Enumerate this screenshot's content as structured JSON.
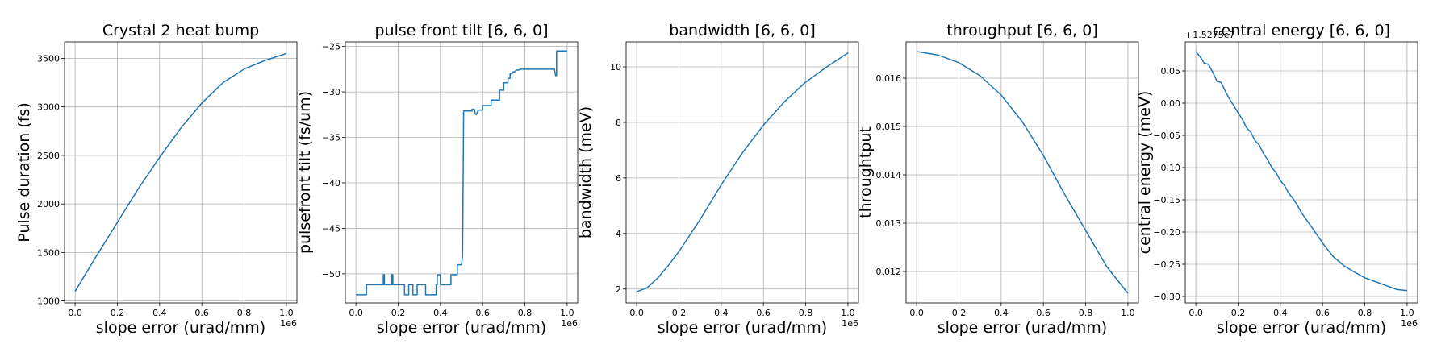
{
  "chart_data": [
    {
      "type": "line",
      "title": "Crystal 2 heat bump",
      "xlabel": "slope error (urad/mm)",
      "ylabel": "Pulse duration (fs)",
      "x_offset_label": "1e6",
      "y_offset_label": "",
      "xlim": [
        -0.05,
        1.05
      ],
      "ylim": [
        980,
        3670
      ],
      "xticks": [
        0.0,
        0.2,
        0.4,
        0.6,
        0.8,
        1.0
      ],
      "xtick_labels": [
        "0.0",
        "0.2",
        "0.4",
        "0.6",
        "0.8",
        "1.0"
      ],
      "yticks": [
        1000,
        1500,
        2000,
        2500,
        3000,
        3500
      ],
      "ytick_labels": [
        "1000",
        "1500",
        "2000",
        "2500",
        "3000",
        "3500"
      ],
      "grid": true,
      "series": [
        {
          "color": "#1f77b4",
          "x": [
            0.0,
            0.1,
            0.2,
            0.3,
            0.4,
            0.5,
            0.6,
            0.7,
            0.8,
            0.9,
            1.0
          ],
          "y": [
            1100,
            1460,
            1810,
            2160,
            2480,
            2780,
            3040,
            3250,
            3390,
            3480,
            3550
          ]
        }
      ]
    },
    {
      "type": "line",
      "title": "pulse front tilt [6, 6, 0]",
      "xlabel": "slope error (urad/mm)",
      "ylabel": "pulsefront tilt (fs/um)",
      "x_offset_label": "1e6",
      "y_offset_label": "",
      "xlim": [
        -0.05,
        1.05
      ],
      "ylim": [
        -53.2,
        -24.5
      ],
      "xticks": [
        0.0,
        0.2,
        0.4,
        0.6,
        0.8,
        1.0
      ],
      "xtick_labels": [
        "0.0",
        "0.2",
        "0.4",
        "0.6",
        "0.8",
        "1.0"
      ],
      "yticks": [
        -50,
        -45,
        -40,
        -35,
        -30,
        -25
      ],
      "ytick_labels": [
        "−50",
        "−45",
        "−40",
        "−35",
        "−30",
        "−25"
      ],
      "grid": true,
      "series": [
        {
          "color": "#1f77b4",
          "x": [
            0.0,
            0.05,
            0.05,
            0.13,
            0.13,
            0.135,
            0.135,
            0.17,
            0.17,
            0.175,
            0.175,
            0.23,
            0.23,
            0.25,
            0.25,
            0.27,
            0.27,
            0.29,
            0.29,
            0.33,
            0.33,
            0.38,
            0.38,
            0.385,
            0.385,
            0.4,
            0.4,
            0.45,
            0.45,
            0.48,
            0.48,
            0.5,
            0.505,
            0.51,
            0.51,
            0.55,
            0.55,
            0.56,
            0.565,
            0.57,
            0.58,
            0.6,
            0.6,
            0.64,
            0.64,
            0.68,
            0.68,
            0.7,
            0.7,
            0.72,
            0.72,
            0.73,
            0.73,
            0.74,
            0.74,
            0.75,
            0.76,
            0.77,
            0.78,
            0.8,
            0.8,
            0.94,
            0.945,
            0.95,
            0.95,
            1.0
          ],
          "y": [
            -52.3,
            -52.3,
            -51.2,
            -51.2,
            -50.1,
            -50.1,
            -51.2,
            -51.2,
            -50.1,
            -50.1,
            -51.2,
            -51.2,
            -52.3,
            -52.3,
            -51.2,
            -51.2,
            -52.3,
            -52.3,
            -51.2,
            -51.2,
            -52.3,
            -52.3,
            -51.2,
            -51.2,
            -50.1,
            -50.1,
            -51.2,
            -51.2,
            -50.1,
            -50.1,
            -49.0,
            -49.0,
            -48.0,
            -32.1,
            -32.1,
            -32.1,
            -31.9,
            -31.9,
            -32.4,
            -32.5,
            -32.0,
            -32.0,
            -31.5,
            -31.5,
            -30.9,
            -30.9,
            -29.8,
            -29.8,
            -29.0,
            -29.0,
            -28.5,
            -28.5,
            -28.0,
            -28.0,
            -27.8,
            -27.8,
            -27.6,
            -27.6,
            -27.5,
            -27.5,
            -27.5,
            -27.5,
            -28.2,
            -28.2,
            -25.5,
            -25.5
          ]
        }
      ]
    },
    {
      "type": "line",
      "title": "bandwidth [6, 6, 0]",
      "xlabel": "slope error (urad/mm)",
      "ylabel": "bandwidth (meV)",
      "x_offset_label": "1e6",
      "y_offset_label": "",
      "xlim": [
        -0.05,
        1.05
      ],
      "ylim": [
        1.5,
        10.9
      ],
      "xticks": [
        0.0,
        0.2,
        0.4,
        0.6,
        0.8,
        1.0
      ],
      "xtick_labels": [
        "0.0",
        "0.2",
        "0.4",
        "0.6",
        "0.8",
        "1.0"
      ],
      "yticks": [
        2,
        4,
        6,
        8,
        10
      ],
      "ytick_labels": [
        "2",
        "4",
        "6",
        "8",
        "10"
      ],
      "grid": true,
      "series": [
        {
          "color": "#1f77b4",
          "x": [
            0.0,
            0.05,
            0.1,
            0.15,
            0.2,
            0.3,
            0.4,
            0.5,
            0.6,
            0.7,
            0.8,
            0.9,
            1.0
          ],
          "y": [
            1.9,
            2.05,
            2.4,
            2.85,
            3.35,
            4.5,
            5.75,
            6.9,
            7.9,
            8.75,
            9.45,
            10.0,
            10.5
          ]
        }
      ]
    },
    {
      "type": "line",
      "title": "throughput [6, 6, 0]",
      "xlabel": "slope error (urad/mm)",
      "ylabel": "throughtput",
      "x_offset_label": "",
      "y_offset_label": "",
      "xlim": [
        -0.05,
        1.05
      ],
      "ylim": [
        0.01135,
        0.01675
      ],
      "xticks": [
        0.0,
        0.2,
        0.4,
        0.6,
        0.8,
        1.0
      ],
      "xtick_labels": [
        "0.0",
        "0.2",
        "0.4",
        "0.6",
        "0.8",
        "1.0"
      ],
      "yticks": [
        0.012,
        0.013,
        0.014,
        0.015,
        0.016
      ],
      "ytick_labels": [
        "0.012",
        "0.013",
        "0.014",
        "0.015",
        "0.016"
      ],
      "grid": true,
      "series": [
        {
          "color": "#1f77b4",
          "x": [
            0.0,
            0.1,
            0.2,
            0.3,
            0.4,
            0.5,
            0.6,
            0.7,
            0.8,
            0.9,
            1.0
          ],
          "y": [
            0.01655,
            0.01648,
            0.01632,
            0.01605,
            0.01565,
            0.0151,
            0.0144,
            0.0136,
            0.01285,
            0.0121,
            0.01155
          ]
        }
      ]
    },
    {
      "type": "line",
      "title": "central energy [6, 6, 0]",
      "xlabel": "slope error (urad/mm)",
      "ylabel": "central energy (meV)",
      "x_offset_label": "1e6",
      "y_offset_label": "+1.5275e7",
      "xlim": [
        -0.05,
        1.05
      ],
      "ylim": [
        -0.31,
        0.095
      ],
      "xticks": [
        0.0,
        0.2,
        0.4,
        0.6,
        0.8,
        1.0
      ],
      "xtick_labels": [
        "0.0",
        "0.2",
        "0.4",
        "0.6",
        "0.8",
        "1.0"
      ],
      "yticks": [
        0.05,
        0.0,
        -0.05,
        -0.1,
        -0.15,
        -0.2,
        -0.25,
        -0.3
      ],
      "ytick_labels": [
        "0.05",
        "0.00",
        "−0.05",
        "−0.10",
        "−0.15",
        "−0.20",
        "−0.25",
        "−0.30"
      ],
      "grid": true,
      "series": [
        {
          "color": "#1f77b4",
          "x": [
            0.0,
            0.02,
            0.04,
            0.06,
            0.08,
            0.1,
            0.12,
            0.14,
            0.16,
            0.18,
            0.2,
            0.22,
            0.24,
            0.26,
            0.28,
            0.3,
            0.32,
            0.34,
            0.36,
            0.38,
            0.4,
            0.42,
            0.44,
            0.46,
            0.48,
            0.5,
            0.55,
            0.6,
            0.65,
            0.7,
            0.75,
            0.8,
            0.85,
            0.9,
            0.95,
            1.0
          ],
          "y": [
            0.08,
            0.072,
            0.062,
            0.06,
            0.048,
            0.034,
            0.032,
            0.018,
            0.006,
            -0.004,
            -0.015,
            -0.025,
            -0.038,
            -0.045,
            -0.058,
            -0.065,
            -0.078,
            -0.088,
            -0.1,
            -0.108,
            -0.12,
            -0.128,
            -0.14,
            -0.148,
            -0.158,
            -0.17,
            -0.193,
            -0.217,
            -0.238,
            -0.252,
            -0.262,
            -0.271,
            -0.277,
            -0.283,
            -0.289,
            -0.291
          ]
        }
      ]
    }
  ]
}
